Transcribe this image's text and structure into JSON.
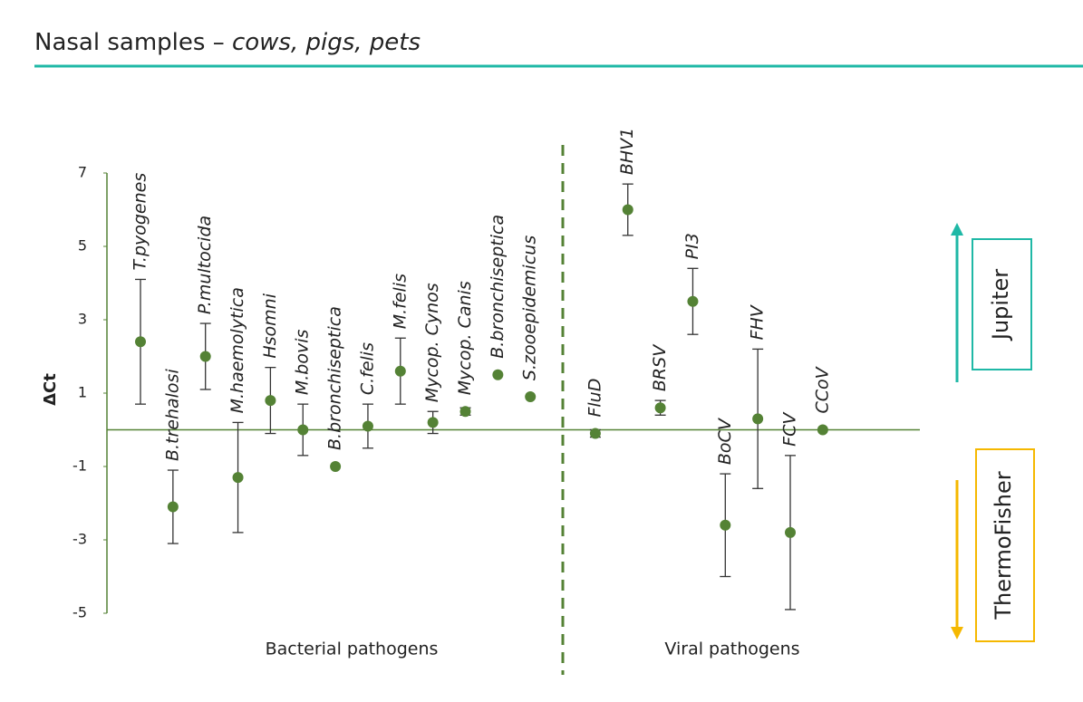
{
  "chart_data": {
    "type": "errorbar",
    "title": "Nasal samples – ",
    "title_emphasis": "cows, pigs, pets",
    "y_label": "ΔCt",
    "categories": [
      "T.pyogenes",
      "B.trehalosi",
      "P.multocida",
      "M.haemolytica",
      "Hsomni",
      "M.bovis",
      "B.bronchiseptica",
      "C.felis",
      "M.felis",
      "Mycop. Cynos",
      "Mycop. Canis",
      "B.bronchiseptica",
      "S.zooepidemicus",
      "FluD",
      "BHV1",
      "BRSV",
      "PI3",
      "BoCV",
      "FHV",
      "FCV",
      "CCoV"
    ],
    "values": [
      2.4,
      -2.1,
      2.0,
      -1.3,
      0.8,
      0.0,
      -1.0,
      0.1,
      1.6,
      0.2,
      0.5,
      1.5,
      0.9,
      -0.1,
      6.0,
      0.6,
      3.5,
      -2.6,
      0.3,
      -2.8,
      0.0
    ],
    "errors": [
      1.7,
      1.0,
      0.9,
      1.5,
      0.9,
      0.7,
      null,
      0.6,
      0.9,
      0.3,
      0.1,
      null,
      null,
      0.1,
      0.7,
      0.2,
      0.9,
      1.4,
      1.9,
      2.1,
      null
    ],
    "color": "#548235",
    "ylim": [
      -5,
      7
    ],
    "yticks": [
      7,
      5,
      3,
      1,
      -1,
      -3,
      -5
    ],
    "group_labels": [
      "Bacterial pathogens",
      "Viral pathogens"
    ],
    "up_label": "Jupiter",
    "up_color": "#1fb8a6",
    "down_label": "ThermoFisher",
    "down_color": "#f5b800"
  }
}
